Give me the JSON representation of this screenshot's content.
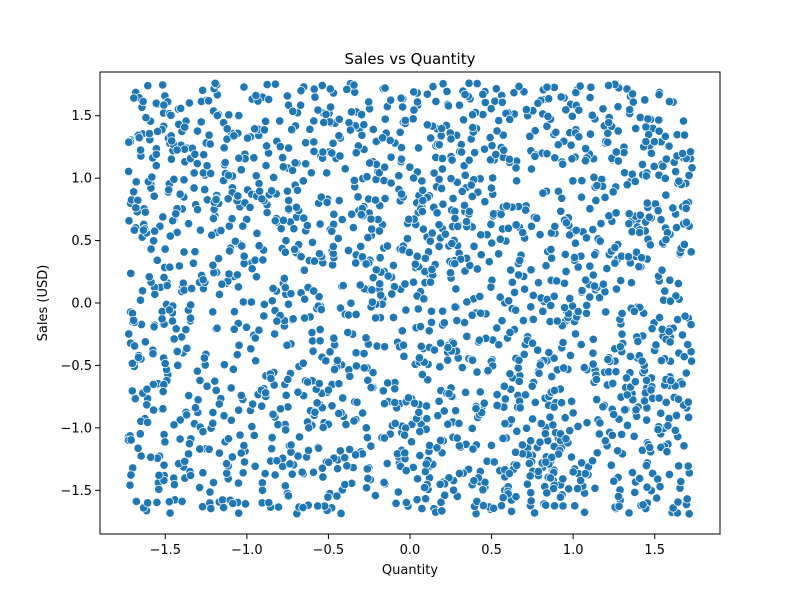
{
  "chart_data": {
    "type": "scatter",
    "title": "Sales vs Quantity",
    "xlabel": "Quantity",
    "ylabel": "Sales (USD)",
    "xlim": [
      -1.9,
      1.9
    ],
    "ylim": [
      -1.85,
      1.85
    ],
    "xticks": [
      -1.5,
      -1.0,
      -0.5,
      0.0,
      0.5,
      1.0,
      1.5
    ],
    "yticks": [
      -1.5,
      -1.0,
      -0.5,
      0.0,
      0.5,
      1.0,
      1.5
    ],
    "xtick_labels": [
      "−1.5",
      "−1.0",
      "−0.5",
      "0.0",
      "0.5",
      "1.0",
      "1.5"
    ],
    "ytick_labels": [
      "−1.5",
      "−1.0",
      "−0.5",
      "0.0",
      "0.5",
      "1.0",
      "1.5"
    ],
    "grid": false,
    "marker_color": "#1f77b4",
    "marker_edge_color": "#ffffff",
    "point_count": 2000,
    "distribution": "uniform",
    "x_range": [
      -1.73,
      1.73
    ],
    "y_range": [
      -1.69,
      1.76
    ],
    "seed": 12345
  }
}
